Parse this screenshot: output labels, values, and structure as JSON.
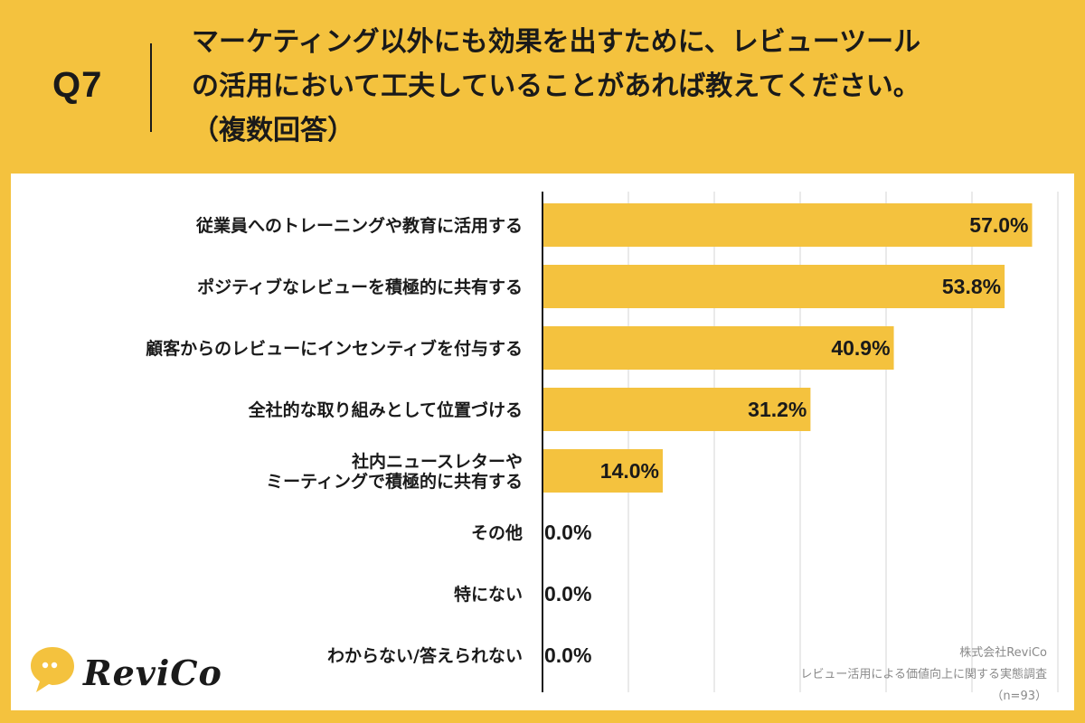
{
  "header": {
    "q_number": "Q7",
    "question_lines": [
      "マーケティング以外にも効果を出すために、レビューツール",
      "の活用において工夫していることがあれば教えてください。",
      "（複数回答）"
    ]
  },
  "chart_data": {
    "type": "bar",
    "orientation": "horizontal",
    "categories": [
      [
        "従業員へのトレーニングや教育に活用する"
      ],
      [
        "ポジティブなレビューを積極的に共有する"
      ],
      [
        "顧客からのレビューにインセンティブを付与する"
      ],
      [
        "全社的な取り組みとして位置づける"
      ],
      [
        "社内ニュースレターや",
        "ミーティングで積極的に共有する"
      ],
      [
        "その他"
      ],
      [
        "特にない"
      ],
      [
        "わからない/答えられない"
      ]
    ],
    "values": [
      57.0,
      53.8,
      40.9,
      31.2,
      14.0,
      0.0,
      0.0,
      0.0
    ],
    "value_labels": [
      "57.0%",
      "53.8%",
      "40.9%",
      "31.2%",
      "14.0%",
      "0.0%",
      "0.0%",
      "0.0%"
    ],
    "xlim": [
      0,
      60
    ],
    "grid": true,
    "bar_color": "#f4c23e"
  },
  "footer": {
    "company": "株式会社ReviCo",
    "survey": "レビュー活用による価値向上に関する実態調査",
    "sample": "（n=93）"
  },
  "logo": {
    "text": "ReviCo",
    "icon": "speech-bubble-icon"
  }
}
